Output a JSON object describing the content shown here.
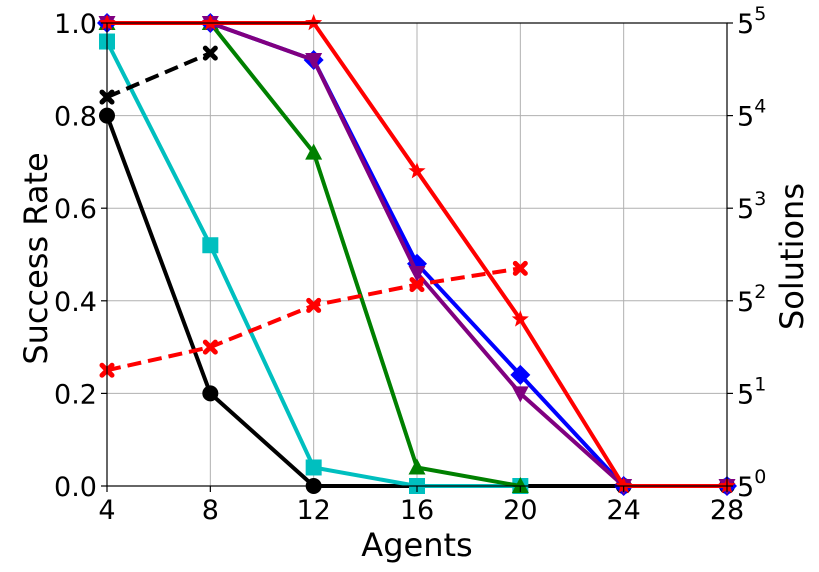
{
  "chart_data": {
    "type": "line",
    "xlabel": "Agents",
    "ylabel": "Success Rate",
    "y2label": "Solutions",
    "x_ticks": [
      4,
      8,
      12,
      16,
      20,
      24,
      28
    ],
    "xlim": [
      4,
      28
    ],
    "ylim": [
      0,
      1.0
    ],
    "y_ticks": [
      0.0,
      0.2,
      0.4,
      0.6,
      0.8,
      1.0
    ],
    "y_tick_labels": [
      "0.0",
      "0.2",
      "0.4",
      "0.6",
      "0.8",
      "1.0"
    ],
    "y2_scale": "log base 5",
    "y2_ticks_exponent": [
      0,
      1,
      2,
      3,
      4,
      5
    ],
    "y2_tick_labels": [
      {
        "base": "5",
        "exp": "0"
      },
      {
        "base": "5",
        "exp": "1"
      },
      {
        "base": "5",
        "exp": "2"
      },
      {
        "base": "5",
        "exp": "3"
      },
      {
        "base": "5",
        "exp": "4"
      },
      {
        "base": "5",
        "exp": "5"
      }
    ],
    "grid": true,
    "series": [
      {
        "color": "#000000",
        "marker": "circle",
        "axis": "left",
        "dash": false,
        "x": [
          4,
          8,
          12,
          16,
          20,
          24,
          28
        ],
        "y": [
          0.8,
          0.2,
          0.0,
          0.0,
          0.0,
          0.0,
          0.0
        ]
      },
      {
        "color": "#00bfbf",
        "marker": "square",
        "axis": "left",
        "dash": false,
        "x": [
          4,
          8,
          12,
          16,
          20
        ],
        "y": [
          0.96,
          0.52,
          0.04,
          0.0,
          0.0
        ]
      },
      {
        "color": "#008000",
        "marker": "triangle-up",
        "axis": "left",
        "dash": false,
        "x": [
          4,
          8,
          12,
          16,
          20
        ],
        "y": [
          1.0,
          1.0,
          0.72,
          0.04,
          0.0
        ]
      },
      {
        "color": "#0000ff",
        "marker": "diamond",
        "axis": "left",
        "dash": false,
        "x": [
          4,
          8,
          12,
          16,
          20,
          24,
          28
        ],
        "y": [
          1.0,
          1.0,
          0.92,
          0.48,
          0.24,
          0.0,
          0.0
        ]
      },
      {
        "color": "#800080",
        "marker": "triangle-down",
        "axis": "left",
        "dash": false,
        "x": [
          4,
          8,
          12,
          16,
          20,
          24,
          28
        ],
        "y": [
          1.0,
          1.0,
          0.92,
          0.46,
          0.2,
          0.0,
          0.0
        ]
      },
      {
        "color": "#ff0000",
        "marker": "star",
        "axis": "left",
        "dash": false,
        "x": [
          4,
          8,
          12,
          16,
          20,
          24,
          28
        ],
        "y": [
          1.0,
          1.0,
          1.0,
          0.68,
          0.36,
          0.0,
          0.0
        ]
      },
      {
        "color": "#000000",
        "marker": "x",
        "axis": "left",
        "dash": true,
        "x": [
          4,
          8
        ],
        "y": [
          0.84,
          0.935
        ]
      },
      {
        "color": "#ff0000",
        "marker": "x",
        "axis": "left",
        "dash": true,
        "x": [
          4,
          8,
          12,
          16,
          20
        ],
        "y": [
          0.25,
          0.3,
          0.39,
          0.435,
          0.47
        ]
      }
    ]
  }
}
